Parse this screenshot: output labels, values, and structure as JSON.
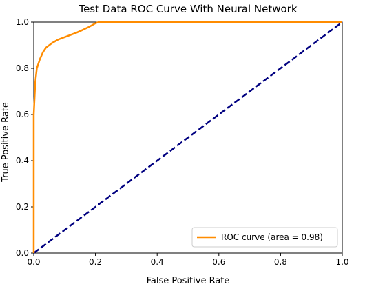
{
  "chart_data": {
    "type": "line",
    "title": "Test Data ROC Curve With Neural Network",
    "xlabel": "False Positive Rate",
    "ylabel": "True Positive Rate",
    "xlim": [
      0.0,
      1.0
    ],
    "ylim": [
      0.0,
      1.0
    ],
    "x_ticks": [
      "0.0",
      "0.2",
      "0.4",
      "0.6",
      "0.8",
      "1.0"
    ],
    "y_ticks": [
      "0.0",
      "0.2",
      "0.4",
      "0.6",
      "0.8",
      "1.0"
    ],
    "grid": false,
    "legend_position": "lower-right",
    "series": [
      {
        "name": "ROC curve (area = 0.98)",
        "color": "#ff8c00",
        "line_style": "solid",
        "x": [
          0.0,
          0.0,
          0.005,
          0.01,
          0.02,
          0.03,
          0.04,
          0.06,
          0.08,
          0.1,
          0.12,
          0.14,
          0.16,
          0.18,
          0.2,
          0.21,
          0.25,
          0.3,
          0.4,
          0.5,
          0.6,
          0.7,
          0.8,
          0.9,
          1.0
        ],
        "y": [
          0.0,
          0.6,
          0.74,
          0.8,
          0.84,
          0.87,
          0.89,
          0.91,
          0.925,
          0.935,
          0.945,
          0.955,
          0.967,
          0.98,
          0.995,
          1.0,
          1.0,
          1.0,
          1.0,
          1.0,
          1.0,
          1.0,
          1.0,
          1.0,
          1.0
        ]
      },
      {
        "color": "#000080",
        "line_style": "dashed",
        "x": [
          0.0,
          1.0
        ],
        "y": [
          0.0,
          1.0
        ]
      }
    ]
  }
}
